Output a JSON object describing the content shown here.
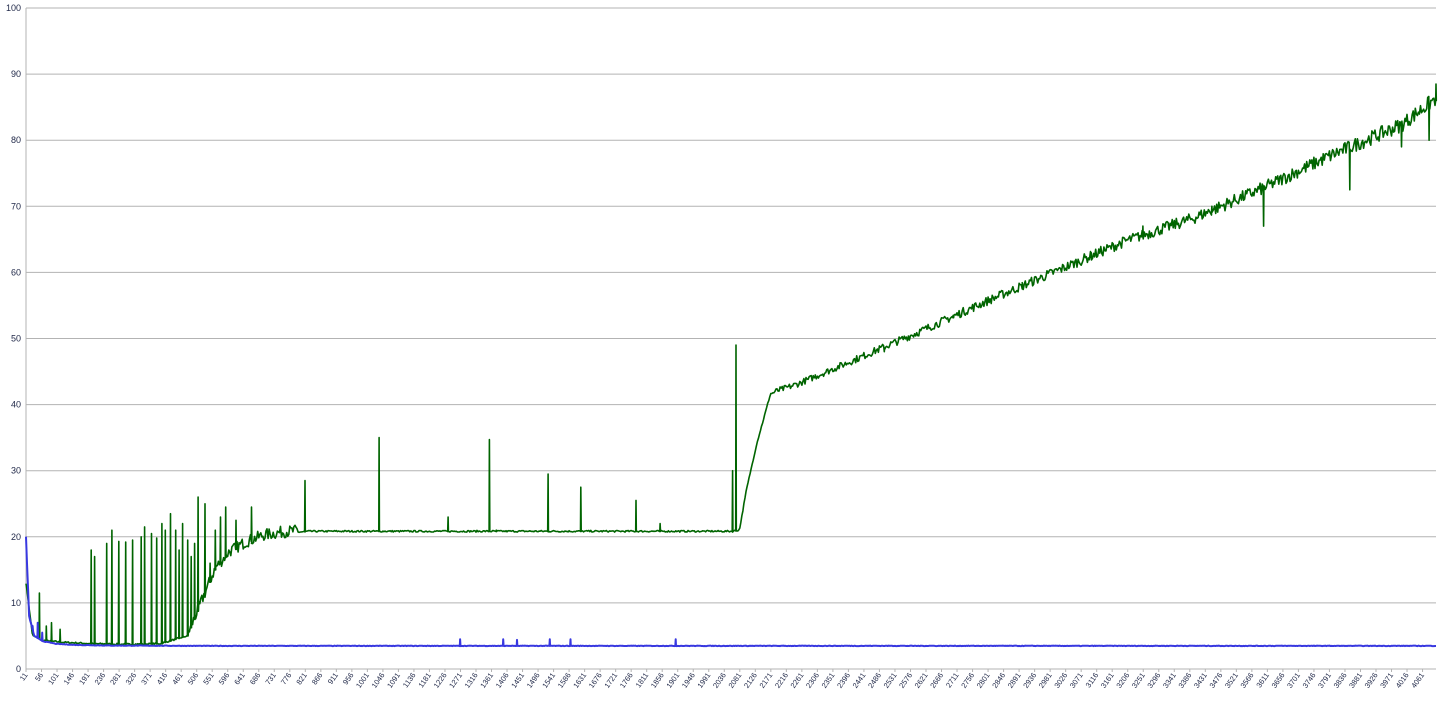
{
  "chart_data": {
    "type": "line",
    "title": "",
    "xlabel": "",
    "ylabel": "",
    "ylim": [
      0,
      100
    ],
    "xlim": [
      11,
      4100
    ],
    "grid": true,
    "legend": "none",
    "y_ticks": [
      0,
      10,
      20,
      30,
      40,
      50,
      60,
      70,
      80,
      90,
      100
    ],
    "x_ticks_start": 11,
    "x_ticks_step": 45,
    "x_ticks_count": 91,
    "series": [
      {
        "color": "#006400",
        "baseline": [
          [
            11,
            13
          ],
          [
            30,
            5
          ],
          [
            60,
            4.3
          ],
          [
            120,
            4
          ],
          [
            200,
            3.8
          ],
          [
            300,
            3.7
          ],
          [
            400,
            3.8
          ],
          [
            480,
            5
          ],
          [
            520,
            10
          ],
          [
            560,
            15
          ],
          [
            600,
            17.5
          ],
          [
            650,
            19
          ],
          [
            700,
            20
          ],
          [
            760,
            20.5
          ],
          [
            830,
            20.8
          ],
          [
            2060,
            20.8
          ],
          [
            2080,
            21
          ],
          [
            2100,
            27
          ],
          [
            2130,
            34
          ],
          [
            2170,
            41.6
          ],
          [
            2250,
            43
          ],
          [
            2400,
            46.3
          ],
          [
            2600,
            50.8
          ],
          [
            2800,
            55.5
          ],
          [
            3000,
            60
          ],
          [
            3200,
            64.5
          ],
          [
            3400,
            68
          ],
          [
            3600,
            72.5
          ],
          [
            3800,
            77.5
          ],
          [
            4000,
            82
          ],
          [
            4100,
            86
          ]
        ],
        "spikes": [
          [
            50,
            11.5
          ],
          [
            70,
            6.5
          ],
          [
            85,
            7
          ],
          [
            110,
            6
          ],
          [
            200,
            18
          ],
          [
            210,
            17
          ],
          [
            245,
            19
          ],
          [
            260,
            21
          ],
          [
            280,
            19.3
          ],
          [
            300,
            19.2
          ],
          [
            320,
            19.5
          ],
          [
            345,
            20
          ],
          [
            355,
            21.5
          ],
          [
            375,
            20.5
          ],
          [
            390,
            19.8
          ],
          [
            405,
            22
          ],
          [
            415,
            21
          ],
          [
            430,
            23.5
          ],
          [
            445,
            21
          ],
          [
            455,
            18
          ],
          [
            465,
            22
          ],
          [
            480,
            19.5
          ],
          [
            490,
            17
          ],
          [
            500,
            19
          ],
          [
            510,
            26
          ],
          [
            530,
            25
          ],
          [
            545,
            16
          ],
          [
            560,
            21
          ],
          [
            575,
            23
          ],
          [
            590,
            24.5
          ],
          [
            620,
            22.5
          ],
          [
            665,
            24.5
          ],
          [
            820,
            28.5
          ],
          [
            1035,
            35
          ],
          [
            1235,
            23
          ],
          [
            1355,
            34.7
          ],
          [
            1375,
            21
          ],
          [
            1525,
            29.5
          ],
          [
            1620,
            27.5
          ],
          [
            1780,
            25.5
          ],
          [
            1850,
            22
          ],
          [
            2060,
            30
          ],
          [
            2070,
            49
          ],
          [
            2300,
            44.5
          ],
          [
            2500,
            48
          ],
          [
            2700,
            53.5
          ],
          [
            2900,
            57.5
          ],
          [
            3100,
            63
          ],
          [
            3250,
            67
          ],
          [
            3450,
            70
          ],
          [
            3600,
            67
          ],
          [
            3700,
            75
          ],
          [
            3850,
            72.5
          ],
          [
            4000,
            79
          ],
          [
            4080,
            80
          ],
          [
            4100,
            88.5
          ]
        ]
      },
      {
        "color": "#3838e0",
        "baseline": [
          [
            11,
            20
          ],
          [
            20,
            8
          ],
          [
            35,
            5
          ],
          [
            60,
            4.2
          ],
          [
            100,
            3.8
          ],
          [
            150,
            3.65
          ],
          [
            250,
            3.55
          ],
          [
            500,
            3.5
          ],
          [
            4100,
            3.5
          ]
        ],
        "spikes": [
          [
            30,
            6.5
          ],
          [
            45,
            7
          ],
          [
            58,
            5.5
          ],
          [
            1270,
            4.5
          ],
          [
            1395,
            4.5
          ],
          [
            1435,
            4.4
          ],
          [
            1530,
            4.5
          ],
          [
            1590,
            4.5
          ],
          [
            1895,
            4.5
          ]
        ]
      }
    ]
  }
}
